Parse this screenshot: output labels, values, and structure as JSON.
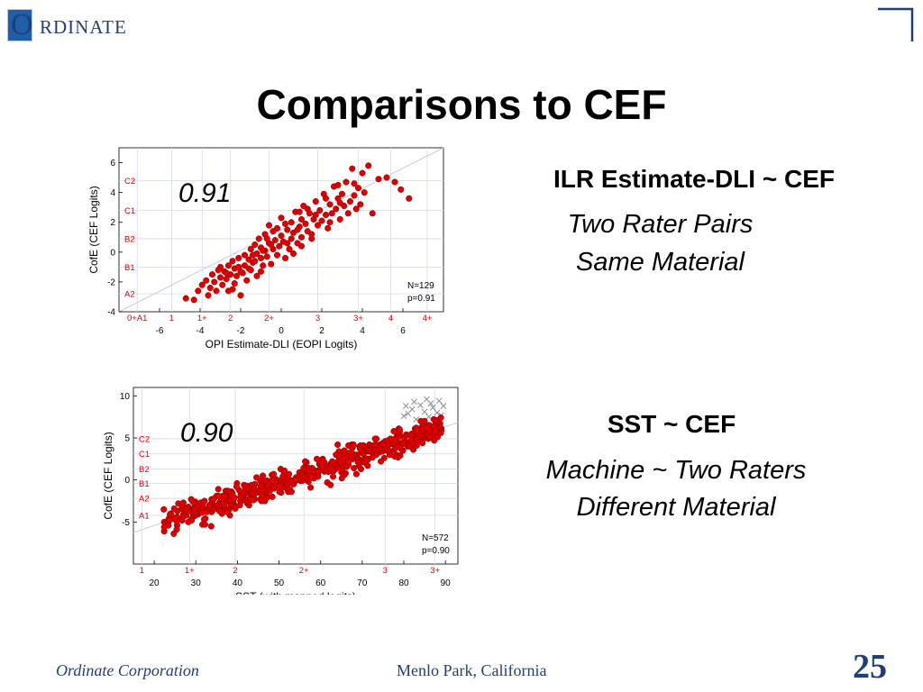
{
  "logo": {
    "first_letter": "O",
    "rest": "RDINATE"
  },
  "title": "Comparisons to CEF",
  "panels": [
    {
      "correlation": "0.91",
      "heading": "ILR Estimate-DLI ~ CEF",
      "sub1": "Two Rater Pairs",
      "sub2": "Same Material"
    },
    {
      "correlation": "0.90",
      "heading": "SST ~ CEF",
      "sub1": "Machine ~ Two Raters",
      "sub2": "Different Material"
    }
  ],
  "footer": {
    "left": "Ordinate Corporation",
    "center": "Menlo Park, California",
    "page": "25"
  },
  "colors": {
    "brand": "#1f3f78",
    "marker": "#dd0000",
    "marker_edge": "#8a0000",
    "excluded_marker": "#8c8c8c",
    "grid": "#d4d8ea"
  },
  "chart_data": [
    {
      "type": "scatter",
      "xlabel": "OPI Estimate-DLI (EOPI Logits)",
      "ylabel": "CofE (CEF Logits)",
      "xlim": [
        -8,
        8
      ],
      "ylim": [
        -4,
        7
      ],
      "x_ticks": [
        -6,
        -4,
        -2,
        0,
        2,
        4,
        6
      ],
      "y_ticks": [
        -4,
        -2,
        0,
        2,
        4,
        6
      ],
      "x_level_labels": [
        {
          "label": "0+A1",
          "x": -7.1
        },
        {
          "label": "1",
          "x": -5.4
        },
        {
          "label": "1+",
          "x": -3.9
        },
        {
          "label": "2",
          "x": -2.5
        },
        {
          "label": "2+",
          "x": -0.6
        },
        {
          "label": "3",
          "x": 1.8
        },
        {
          "label": "3+",
          "x": 3.8
        },
        {
          "label": "4",
          "x": 5.4
        },
        {
          "label": "4+",
          "x": 7.2
        }
      ],
      "y_level_labels": [
        {
          "label": "A2",
          "y": -2.8
        },
        {
          "label": "B1",
          "y": -1.0
        },
        {
          "label": "B2",
          "y": 0.9
        },
        {
          "label": "C1",
          "y": 2.8
        },
        {
          "label": "C2",
          "y": 4.8
        }
      ],
      "annotations": [
        "N=129",
        "p=0.91"
      ],
      "fit_line": true,
      "grid": true,
      "points": [
        [
          -4.7,
          -3.1
        ],
        [
          -4.3,
          -3.2
        ],
        [
          -4.1,
          -2.6
        ],
        [
          -3.9,
          -2.2
        ],
        [
          -3.7,
          -1.9
        ],
        [
          -3.5,
          -2.4
        ],
        [
          -3.4,
          -1.5
        ],
        [
          -3.3,
          -2.0
        ],
        [
          -3.2,
          -2.6
        ],
        [
          -3.0,
          -1.0
        ],
        [
          -3.0,
          -1.7
        ],
        [
          -2.9,
          -2.2
        ],
        [
          -2.8,
          -1.3
        ],
        [
          -2.7,
          -1.8
        ],
        [
          -2.6,
          -0.9
        ],
        [
          -2.6,
          -2.6
        ],
        [
          -2.5,
          -1.5
        ],
        [
          -2.4,
          -0.6
        ],
        [
          -2.3,
          -1.1
        ],
        [
          -2.3,
          -2.1
        ],
        [
          -2.2,
          -1.6
        ],
        [
          -2.1,
          -0.4
        ],
        [
          -2.1,
          -1.0
        ],
        [
          -2.0,
          -2.9
        ],
        [
          -1.9,
          -1.4
        ],
        [
          -1.8,
          -0.2
        ],
        [
          -1.8,
          -0.9
        ],
        [
          -1.7,
          -1.9
        ],
        [
          -1.6,
          -0.5
        ],
        [
          -1.5,
          0.2
        ],
        [
          -1.5,
          -1.2
        ],
        [
          -1.4,
          -0.7
        ],
        [
          -1.3,
          0.5
        ],
        [
          -1.2,
          -0.1
        ],
        [
          -1.2,
          -1.6
        ],
        [
          -1.1,
          0.9
        ],
        [
          -1.0,
          -0.4
        ],
        [
          -1.0,
          0.3
        ],
        [
          -0.9,
          -0.9
        ],
        [
          -0.8,
          1.2
        ],
        [
          -0.8,
          0.1
        ],
        [
          -0.7,
          -0.3
        ],
        [
          -0.6,
          0.6
        ],
        [
          -0.6,
          1.8
        ],
        [
          -0.5,
          -0.8
        ],
        [
          -0.4,
          0.2
        ],
        [
          -0.4,
          1.4
        ],
        [
          -0.3,
          0.8
        ],
        [
          -0.2,
          -0.2
        ],
        [
          -0.1,
          0.4
        ],
        [
          0.0,
          1.1
        ],
        [
          0.0,
          2.3
        ],
        [
          0.1,
          0.7
        ],
        [
          0.2,
          -0.4
        ],
        [
          0.3,
          1.5
        ],
        [
          0.4,
          0.2
        ],
        [
          0.5,
          2.0
        ],
        [
          0.5,
          0.9
        ],
        [
          0.6,
          1.3
        ],
        [
          0.7,
          2.7
        ],
        [
          0.8,
          0.6
        ],
        [
          0.9,
          1.7
        ],
        [
          1.0,
          2.2
        ],
        [
          1.0,
          1.0
        ],
        [
          1.1,
          3.1
        ],
        [
          1.2,
          1.9
        ],
        [
          1.3,
          1.4
        ],
        [
          1.4,
          2.6
        ],
        [
          1.5,
          0.9
        ],
        [
          1.6,
          2.2
        ],
        [
          1.7,
          3.4
        ],
        [
          1.8,
          1.8
        ],
        [
          1.9,
          2.8
        ],
        [
          2.0,
          2.1
        ],
        [
          2.1,
          3.9
        ],
        [
          2.2,
          2.5
        ],
        [
          2.3,
          1.6
        ],
        [
          2.4,
          3.2
        ],
        [
          2.5,
          2.6
        ],
        [
          2.6,
          4.4
        ],
        [
          2.7,
          2.9
        ],
        [
          2.8,
          3.6
        ],
        [
          2.9,
          2.2
        ],
        [
          3.0,
          3.9
        ],
        [
          3.1,
          3.1
        ],
        [
          3.2,
          4.7
        ],
        [
          3.3,
          2.6
        ],
        [
          3.4,
          3.4
        ],
        [
          3.5,
          5.6
        ],
        [
          3.6,
          3.8
        ],
        [
          3.7,
          2.9
        ],
        [
          3.8,
          4.3
        ],
        [
          3.9,
          3.2
        ],
        [
          4.0,
          5.3
        ],
        [
          4.1,
          4.0
        ],
        [
          4.3,
          5.8
        ],
        [
          4.5,
          2.6
        ],
        [
          4.8,
          4.9
        ],
        [
          5.2,
          5.0
        ],
        [
          5.6,
          4.7
        ],
        [
          5.9,
          4.2
        ],
        [
          6.3,
          3.6
        ],
        [
          -3.6,
          -2.9
        ],
        [
          -2.4,
          -2.5
        ],
        [
          -1.6,
          -1.1
        ],
        [
          -0.9,
          0.1
        ],
        [
          0.2,
          1.9
        ],
        [
          0.8,
          1.5
        ],
        [
          1.3,
          2.9
        ],
        [
          2.2,
          3.6
        ],
        [
          2.8,
          4.5
        ],
        [
          3.6,
          4.6
        ],
        [
          -2.0,
          -1.3
        ],
        [
          -1.4,
          -0.2
        ],
        [
          -0.5,
          0.5
        ],
        [
          0.3,
          0.6
        ],
        [
          1.0,
          0.4
        ],
        [
          1.7,
          2.5
        ],
        [
          2.4,
          2.0
        ],
        [
          -3.1,
          -1.2
        ],
        [
          -1.0,
          -1.3
        ],
        [
          0.6,
          -0.1
        ],
        [
          1.5,
          1.2
        ],
        [
          2.9,
          3.3
        ],
        [
          -2.7,
          -1.4
        ],
        [
          -0.2,
          1.6
        ],
        [
          0.9,
          2.7
        ],
        [
          -1.3,
          -0.6
        ],
        [
          -0.7,
          0.9
        ]
      ]
    },
    {
      "type": "scatter",
      "xlabel": "SST (with mapped logits)",
      "ylabel": "CofE (CEF Logits)",
      "xlim": [
        15,
        93
      ],
      "ylim": [
        -10,
        11
      ],
      "x_ticks": [
        20,
        30,
        40,
        50,
        60,
        70,
        80,
        90
      ],
      "y_ticks": [
        -5,
        0,
        5,
        10
      ],
      "x_level_labels": [
        {
          "label": "1",
          "x": 17
        },
        {
          "label": "1+",
          "x": 28.5
        },
        {
          "label": "2",
          "x": 39.5
        },
        {
          "label": "2+",
          "x": 56
        },
        {
          "label": "3",
          "x": 75.5
        },
        {
          "label": "3+",
          "x": 87.5
        }
      ],
      "y_level_labels": [
        {
          "label": "A1",
          "y": -4.2
        },
        {
          "label": "A2",
          "y": -2.2
        },
        {
          "label": "B1",
          "y": -0.4
        },
        {
          "label": "B2",
          "y": 1.3
        },
        {
          "label": "C1",
          "y": 3.1
        },
        {
          "label": "C2",
          "y": 4.9
        }
      ],
      "annotations": [
        "N=572",
        "p=0.90"
      ],
      "fit_line": true,
      "grid": true,
      "generated_from": {
        "slope": 0.165,
        "intercept": -8.6,
        "noise": 1.4,
        "count": 572,
        "x_range": [
          22,
          89
        ]
      },
      "excluded_points": [
        [
          80,
          7.6
        ],
        [
          81,
          7.9
        ],
        [
          82,
          8.4
        ],
        [
          83,
          7.2
        ],
        [
          84,
          8.9
        ],
        [
          85,
          8.1
        ],
        [
          86,
          7.5
        ],
        [
          86.5,
          9.1
        ],
        [
          87,
          8.6
        ],
        [
          87.5,
          6.9
        ],
        [
          88,
          8.0
        ],
        [
          88.5,
          9.4
        ],
        [
          89,
          7.7
        ],
        [
          89.5,
          8.8
        ],
        [
          84,
          6.6
        ],
        [
          82.5,
          9.3
        ],
        [
          85.5,
          9.6
        ],
        [
          80.5,
          8.8
        ]
      ]
    }
  ]
}
